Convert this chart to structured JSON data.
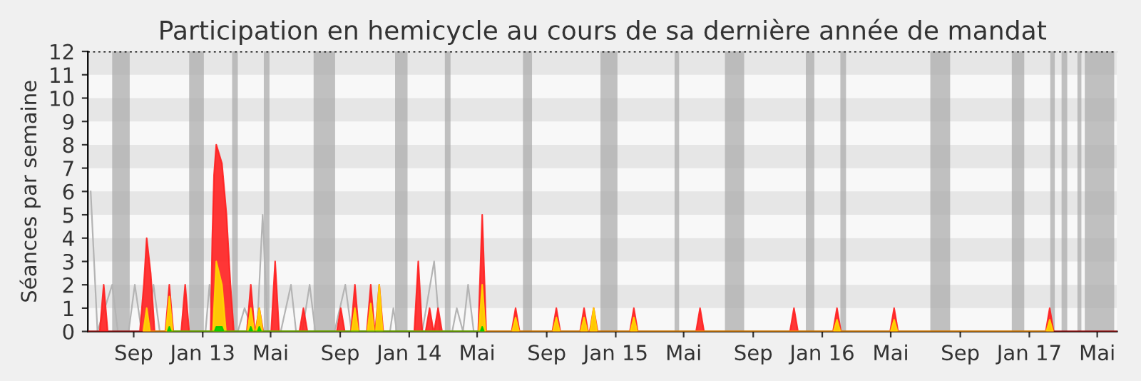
{
  "chart_data": {
    "type": "area",
    "title": "Participation en hemicycle au cours de sa dernière année de mandat",
    "ylabel": "Séances par semaine",
    "xlim": [
      "2012-06-12",
      "2017-06-05"
    ],
    "ylim": [
      0,
      12
    ],
    "xticks": [
      {
        "value": "2012-09-01",
        "label": "Sep"
      },
      {
        "value": "2013-01-01",
        "label": "Jan 13"
      },
      {
        "value": "2013-05-01",
        "label": "Mai"
      },
      {
        "value": "2013-09-01",
        "label": "Sep"
      },
      {
        "value": "2014-01-01",
        "label": "Jan 14"
      },
      {
        "value": "2014-05-01",
        "label": "Mai"
      },
      {
        "value": "2014-09-01",
        "label": "Sep"
      },
      {
        "value": "2015-01-01",
        "label": "Jan 15"
      },
      {
        "value": "2015-05-01",
        "label": "Mai"
      },
      {
        "value": "2015-09-01",
        "label": "Sep"
      },
      {
        "value": "2016-01-01",
        "label": "Jan 16"
      },
      {
        "value": "2016-05-01",
        "label": "Mai"
      },
      {
        "value": "2016-09-01",
        "label": "Sep"
      },
      {
        "value": "2017-01-01",
        "label": "Jan 17"
      },
      {
        "value": "2017-05-01",
        "label": "Mai"
      }
    ],
    "yticks": [
      0,
      1,
      2,
      3,
      4,
      5,
      6,
      7,
      8,
      9,
      10,
      11,
      12
    ],
    "grid": false,
    "legend": false,
    "bands": [
      {
        "axis": "y",
        "from": 1,
        "to": 2,
        "color": "#e6e6e6"
      },
      {
        "axis": "y",
        "from": 3,
        "to": 4,
        "color": "#e6e6e6"
      },
      {
        "axis": "y",
        "from": 5,
        "to": 6,
        "color": "#e6e6e6"
      },
      {
        "axis": "y",
        "from": 7,
        "to": 8,
        "color": "#e6e6e6"
      },
      {
        "axis": "y",
        "from": 9,
        "to": 10,
        "color": "#e6e6e6"
      },
      {
        "axis": "y",
        "from": 11,
        "to": 12,
        "color": "#e6e6e6"
      },
      {
        "axis": "x",
        "from": "2012-07-25",
        "to": "2012-08-25",
        "color": "#a8a8a8"
      },
      {
        "axis": "x",
        "from": "2012-12-08",
        "to": "2013-01-03",
        "color": "#a8a8a8"
      },
      {
        "axis": "x",
        "from": "2013-02-22",
        "to": "2013-03-04",
        "color": "#a8a8a8"
      },
      {
        "axis": "x",
        "from": "2013-04-19",
        "to": "2013-04-29",
        "color": "#a8a8a8"
      },
      {
        "axis": "x",
        "from": "2013-07-16",
        "to": "2013-08-23",
        "color": "#a8a8a8"
      },
      {
        "axis": "x",
        "from": "2013-12-07",
        "to": "2013-12-29",
        "color": "#a8a8a8"
      },
      {
        "axis": "x",
        "from": "2014-03-05",
        "to": "2014-03-15",
        "color": "#a8a8a8"
      },
      {
        "axis": "x",
        "from": "2014-07-21",
        "to": "2014-08-06",
        "color": "#a8a8a8"
      },
      {
        "axis": "x",
        "from": "2014-12-05",
        "to": "2015-01-04",
        "color": "#a8a8a8"
      },
      {
        "axis": "x",
        "from": "2015-04-15",
        "to": "2015-04-23",
        "color": "#a8a8a8"
      },
      {
        "axis": "x",
        "from": "2015-07-13",
        "to": "2015-08-16",
        "color": "#a8a8a8"
      },
      {
        "axis": "x",
        "from": "2015-12-03",
        "to": "2015-12-18",
        "color": "#a8a8a8"
      },
      {
        "axis": "x",
        "from": "2016-02-02",
        "to": "2016-02-12",
        "color": "#a8a8a8"
      },
      {
        "axis": "x",
        "from": "2016-07-10",
        "to": "2016-08-14",
        "color": "#a8a8a8"
      },
      {
        "axis": "x",
        "from": "2016-12-01",
        "to": "2016-12-23",
        "color": "#a8a8a8"
      },
      {
        "axis": "x",
        "from": "2017-02-07",
        "to": "2017-02-15",
        "color": "#a8a8a8"
      },
      {
        "axis": "x",
        "from": "2017-02-27",
        "to": "2017-03-09",
        "color": "#a8a8a8"
      },
      {
        "axis": "x",
        "from": "2017-03-27",
        "to": "2017-04-03",
        "color": "#a8a8a8"
      },
      {
        "axis": "x",
        "from": "2017-04-09",
        "to": "2017-05-31",
        "color": "#a8a8a8"
      }
    ],
    "ref_lines": [
      {
        "axis": "y",
        "value": 12,
        "color": "#000000",
        "line_style": "dotted"
      }
    ],
    "series": [
      {
        "type": "line",
        "color": "#b4b4b4",
        "x": [
          "2012-06-17",
          "2012-06-29",
          "2012-07-25",
          "2012-08-04",
          "2012-08-23",
          "2012-09-03",
          "2012-09-15",
          "2012-09-26",
          "2012-10-06",
          "2012-10-17",
          "2013-01-06",
          "2013-01-13",
          "2013-01-19",
          "2013-03-04",
          "2013-03-16",
          "2013-03-31",
          "2013-04-07",
          "2013-04-17",
          "2013-04-26",
          "2013-05-19",
          "2013-06-06",
          "2013-06-15",
          "2013-06-26",
          "2013-07-09",
          "2013-07-19",
          "2013-08-22",
          "2013-09-10",
          "2013-09-21",
          "2013-11-28",
          "2013-12-04",
          "2013-12-10",
          "2014-01-24",
          "2014-02-14",
          "2014-02-24",
          "2014-03-18",
          "2014-03-26",
          "2014-04-06",
          "2014-04-15",
          "2014-04-25"
        ],
        "values": [
          6,
          0,
          2,
          0,
          0,
          2,
          0,
          0,
          2,
          0,
          0,
          2,
          0,
          0,
          1,
          0,
          0,
          5,
          0,
          0,
          2,
          0,
          0,
          2,
          0,
          0,
          2,
          0,
          0,
          1,
          0,
          0,
          3,
          0,
          0,
          1,
          0,
          2,
          0
        ]
      },
      {
        "color": "#ff2020",
        "x": [
          "2012-06-12",
          "2012-07-03",
          "2012-07-10",
          "2012-07-17",
          "2012-09-12",
          "2012-09-19",
          "2012-09-24",
          "2012-10-01",
          "2012-10-08",
          "2012-10-27",
          "2012-11-03",
          "2012-11-10",
          "2012-11-24",
          "2012-12-01",
          "2012-12-08",
          "2013-01-15",
          "2013-01-18",
          "2013-01-21",
          "2013-01-25",
          "2013-02-04",
          "2013-02-12",
          "2013-02-19",
          "2013-02-25",
          "2013-03-20",
          "2013-03-27",
          "2013-04-03",
          "2013-04-04",
          "2013-04-11",
          "2013-04-18",
          "2013-05-02",
          "2013-05-09",
          "2013-05-16",
          "2013-06-21",
          "2013-06-28",
          "2013-07-05",
          "2013-08-26",
          "2013-09-02",
          "2013-09-09",
          "2013-09-20",
          "2013-09-27",
          "2013-10-04",
          "2013-10-18",
          "2013-10-25",
          "2013-11-01",
          "2013-11-02",
          "2013-11-09",
          "2013-11-16",
          "2014-01-10",
          "2014-01-17",
          "2014-01-24",
          "2014-01-30",
          "2014-02-06",
          "2014-02-13",
          "2014-02-14",
          "2014-02-21",
          "2014-02-28",
          "2014-05-03",
          "2014-05-10",
          "2014-05-17",
          "2014-07-01",
          "2014-07-08",
          "2014-07-15",
          "2014-09-11",
          "2014-09-18",
          "2014-09-25",
          "2014-10-30",
          "2014-11-06",
          "2014-11-13",
          "2014-11-16",
          "2014-11-23",
          "2014-11-30",
          "2015-01-26",
          "2015-02-02",
          "2015-02-09",
          "2015-05-23",
          "2015-05-30",
          "2015-06-06",
          "2015-11-05",
          "2015-11-12",
          "2015-11-19",
          "2016-01-20",
          "2016-01-27",
          "2016-02-03",
          "2016-04-30",
          "2016-05-07",
          "2016-05-14",
          "2017-01-30",
          "2017-02-06",
          "2017-02-13",
          "2017-06-05"
        ],
        "values": [
          0,
          0,
          2,
          0,
          0,
          2,
          4,
          2.5,
          0,
          0,
          2,
          0,
          0,
          2,
          0,
          0,
          4,
          6.7,
          8,
          7.2,
          5,
          2,
          0,
          0,
          2,
          0,
          0,
          1,
          0,
          0,
          3,
          0,
          0,
          1,
          0,
          0,
          1,
          0,
          0,
          2,
          0,
          0,
          2,
          0,
          0,
          2,
          0,
          0,
          3,
          0,
          0,
          1,
          0,
          0,
          1,
          0,
          0,
          5,
          0,
          0,
          1,
          0,
          0,
          1,
          0,
          0,
          1,
          0,
          0,
          1,
          0,
          0,
          1,
          0,
          0,
          1,
          0,
          0,
          1,
          0,
          0,
          1,
          0,
          0,
          1,
          0,
          0,
          1,
          0,
          0
        ]
      },
      {
        "color": "#ffd700",
        "x": [
          "2012-09-18",
          "2012-09-24",
          "2012-09-30",
          "2012-10-28",
          "2012-11-03",
          "2012-11-09",
          "2013-01-19",
          "2013-01-25",
          "2013-02-04",
          "2013-02-11",
          "2013-03-21",
          "2013-03-27",
          "2013-04-02",
          "2013-04-05",
          "2013-04-11",
          "2013-04-17",
          "2013-09-21",
          "2013-09-27",
          "2013-10-03",
          "2013-10-19",
          "2013-10-25",
          "2013-10-31",
          "2013-11-03",
          "2013-11-09",
          "2013-11-15",
          "2014-05-04",
          "2014-05-10",
          "2014-05-16",
          "2014-07-02",
          "2014-07-08",
          "2014-07-14",
          "2014-09-12",
          "2014-09-18",
          "2014-09-24",
          "2014-10-31",
          "2014-11-06",
          "2014-11-12",
          "2014-11-17",
          "2014-11-23",
          "2014-11-29",
          "2015-01-27",
          "2015-02-02",
          "2015-02-08",
          "2016-01-21",
          "2016-01-27",
          "2016-02-02",
          "2016-05-01",
          "2016-05-07",
          "2016-05-13",
          "2017-01-31",
          "2017-02-06",
          "2017-02-12"
        ],
        "values": [
          0,
          1,
          0,
          0,
          1.5,
          0,
          0,
          3,
          2,
          0,
          0,
          1,
          0,
          0,
          1,
          0,
          0,
          1,
          0,
          0,
          1.2,
          0,
          0,
          2,
          0,
          0,
          2,
          0,
          0,
          0.6,
          0,
          0,
          0.6,
          0,
          0,
          0.6,
          0,
          0,
          1,
          0,
          0,
          0.6,
          0,
          0,
          0.5,
          0,
          0,
          0.5,
          0,
          0,
          0.5,
          0
        ]
      },
      {
        "color": "#00cc00",
        "x": [
          "2012-10-31",
          "2012-11-03",
          "2012-11-06",
          "2013-01-22",
          "2013-01-25",
          "2013-02-04",
          "2013-02-07",
          "2013-03-24",
          "2013-03-27",
          "2013-03-30",
          "2013-04-08",
          "2013-04-11",
          "2013-04-14",
          "2014-05-07",
          "2014-05-10",
          "2014-05-13"
        ],
        "values": [
          0,
          0.2,
          0,
          0,
          0.2,
          0.2,
          0,
          0,
          0.2,
          0,
          0,
          0.2,
          0,
          0,
          0.2,
          0
        ]
      }
    ]
  }
}
